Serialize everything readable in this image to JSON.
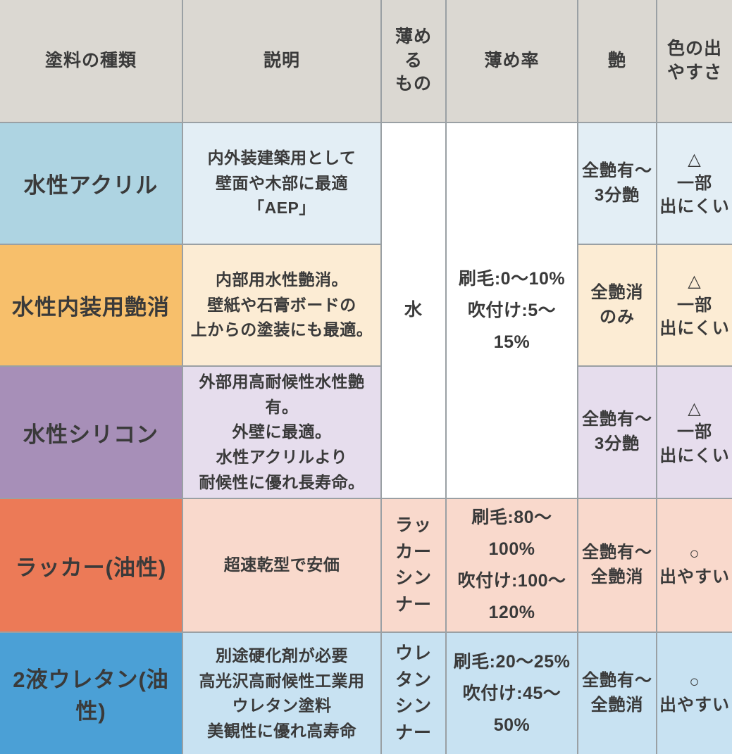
{
  "headers": {
    "paint_type": "塗料の種類",
    "description": "説明",
    "thinner": "薄める\nもの",
    "ratio": "薄め率",
    "gloss": "艶",
    "color_ease": "色の出\nやすさ"
  },
  "merged_cells": {
    "thinner": "水",
    "ratio": "刷毛:0〜10%\n吹付け:5〜15%"
  },
  "rows": [
    {
      "name": "水性アクリル",
      "desc": "内外装建築用として\n壁面や木部に最適「AEP」",
      "thinner": "水",
      "ratio": "刷毛:0〜10%\n吹付け:5〜15%",
      "gloss": "全艶有〜\n3分艶",
      "color_ease": "△\n一部\n出にくい"
    },
    {
      "name": "水性内装用艶消",
      "desc": "内部用水性艶消。\n壁紙や石膏ボードの\n上からの塗装にも最適。",
      "thinner": "水",
      "ratio": "刷毛:0〜10%\n吹付け:5〜15%",
      "gloss": "全艶消\nのみ",
      "color_ease": "△\n一部\n出にくい"
    },
    {
      "name": "水性シリコン",
      "desc": "外部用高耐候性水性艶有。\n外壁に最適。\n水性アクリルより\n耐候性に優れ長寿命。",
      "thinner": "水",
      "ratio": "刷毛:0〜10%\n吹付け:5〜15%",
      "gloss": "全艶有〜\n3分艶",
      "color_ease": "△\n一部\n出にくい"
    },
    {
      "name": "ラッカー(油性)",
      "desc": "超速乾型で安価",
      "thinner": "ラッカー\nシンナー",
      "ratio": "刷毛:80〜100%\n吹付け:100〜120%",
      "gloss": "全艶有〜\n全艶消",
      "color_ease": "○\n出やすい"
    },
    {
      "name": "2液ウレタン(油性)",
      "desc": "別途硬化剤が必要\n高光沢高耐候性工業用\nウレタン塗料\n美観性に優れ高寿命",
      "thinner": "ウレタン\nシンナー",
      "ratio": "刷毛:20〜25%\n吹付け:45〜50%",
      "gloss": "全艶有〜\n全艶消",
      "color_ease": "○\n出やすい"
    }
  ],
  "colors": {
    "header_bg": "#dbd8d2",
    "grid_border": "#9aa0a4",
    "merged_cell_bg": "#ffffff",
    "text": "#3a3a3a",
    "row_palettes": [
      {
        "name_bg": "#aed4e2",
        "cell_bg": "#e3eef5"
      },
      {
        "name_bg": "#f7bf6b",
        "cell_bg": "#fcecd4"
      },
      {
        "name_bg": "#a78fb8",
        "cell_bg": "#e6dded"
      },
      {
        "name_bg": "#ec7a57",
        "cell_bg": "#f9d9cc"
      },
      {
        "name_bg": "#4ba0d6",
        "cell_bg": "#c8e2f2"
      }
    ]
  },
  "chart_data": {
    "type": "table",
    "title": "",
    "columns": [
      "塗料の種類",
      "説明",
      "薄めるもの",
      "薄め率",
      "艶",
      "色の出やすさ"
    ],
    "rows": [
      [
        "水性アクリル",
        "内外装建築用として壁面や木部に最適「AEP」",
        "水",
        "刷毛:0〜10% 吹付け:5〜15%",
        "全艶有〜3分艶",
        "△ 一部出にくい"
      ],
      [
        "水性内装用艶消",
        "内部用水性艶消。壁紙や石膏ボードの上からの塗装にも最適。",
        "水",
        "刷毛:0〜10% 吹付け:5〜15%",
        "全艶消のみ",
        "△ 一部出にくい"
      ],
      [
        "水性シリコン",
        "外部用高耐候性水性艶有。外壁に最適。水性アクリルより耐候性に優れ長寿命。",
        "水",
        "刷毛:0〜10% 吹付け:5〜15%",
        "全艶有〜3分艶",
        "△ 一部出にくい"
      ],
      [
        "ラッカー(油性)",
        "超速乾型で安価",
        "ラッカーシンナー",
        "刷毛:80〜100% 吹付け:100〜120%",
        "全艶有〜全艶消",
        "○ 出やすい"
      ],
      [
        "2液ウレタン(油性)",
        "別途硬化剤が必要 高光沢高耐候性工業用ウレタン塗料 美観性に優れ高寿命",
        "ウレタンシンナー",
        "刷毛:20〜25% 吹付け:45〜50%",
        "全艶有〜全艶消",
        "○ 出やすい"
      ]
    ],
    "layout": {
      "merged_cells": "薄めるもの・薄め率 columns merged across first 3 rows",
      "grid": true,
      "header_row": true
    }
  }
}
